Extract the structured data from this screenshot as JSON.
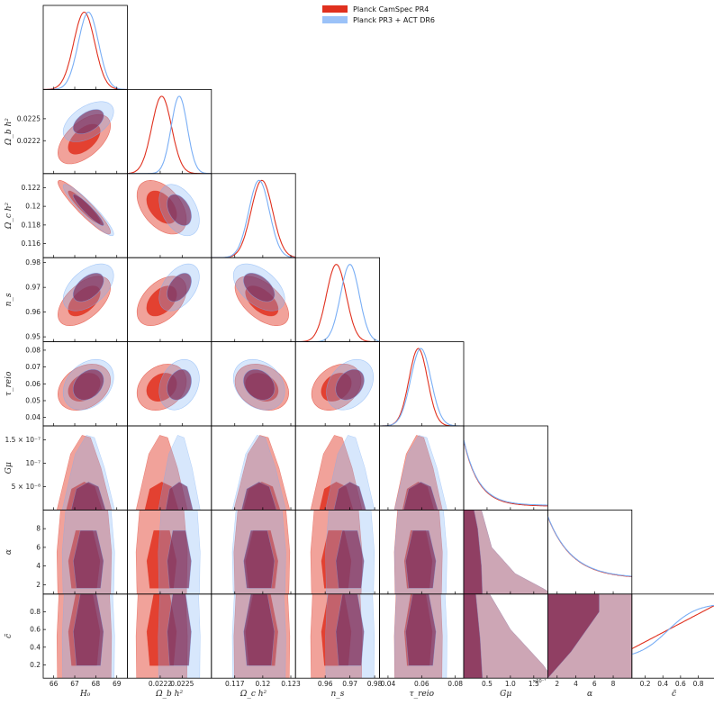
{
  "legend": {
    "items": [
      {
        "label": "Planck CamSpec PR4",
        "color": "#e0301e"
      },
      {
        "label": "Planck PR3 + ACT DR6",
        "color": "#79aef5"
      }
    ]
  },
  "chart_data": {
    "type": "corner",
    "parameters": [
      {
        "name": "H_0",
        "label": "H₀",
        "range": [
          65.5,
          69.5
        ],
        "ticks": [
          66,
          67,
          68,
          69
        ]
      },
      {
        "name": "omega_b",
        "label": "Ω_b h²",
        "range": [
          0.02175,
          0.0229
        ],
        "ticks": [
          0.0222,
          0.0225
        ]
      },
      {
        "name": "omega_c",
        "label": "Ω_c h²",
        "range": [
          0.1145,
          0.1235
        ],
        "ticks": [
          0.117,
          0.12,
          0.123
        ],
        "ylim": [
          0.1145,
          0.1235
        ],
        "yticks": [
          0.116,
          0.118,
          0.12,
          0.122
        ]
      },
      {
        "name": "n_s",
        "label": "n_s",
        "range": [
          0.948,
          0.982
        ],
        "ticks": [
          0.96,
          0.97,
          0.98
        ],
        "yticks": [
          0.95,
          0.96,
          0.97,
          0.98
        ]
      },
      {
        "name": "tau_reio",
        "label": "τ_reio",
        "range": [
          0.035,
          0.085
        ],
        "ticks": [
          0.04,
          0.06,
          0.08
        ],
        "yticks": [
          0.04,
          0.05,
          0.06,
          0.07,
          0.08
        ]
      },
      {
        "name": "G_mu",
        "label": "Gμ",
        "range": [
          0,
          1.8e-07
        ],
        "ticks": [
          5e-08,
          1e-07,
          1.5e-07
        ],
        "tick_labels": [
          "0.5",
          "1.0",
          "1.5"
        ],
        "scale_label": "×10⁻⁷",
        "yticks": [
          5e-08,
          1e-07,
          1.5e-07
        ],
        "ytick_labels": [
          "5 × 10⁻⁸",
          "10⁻⁷",
          "1.5 × 10⁻⁷"
        ]
      },
      {
        "name": "alpha",
        "label": "α",
        "range": [
          1,
          10
        ],
        "ticks": [
          2,
          4,
          6,
          8
        ],
        "yticks": [
          2,
          4,
          6,
          8
        ]
      },
      {
        "name": "c_tilde",
        "label": "c̃",
        "range": [
          0.05,
          1.0
        ],
        "ticks": [
          0.2,
          0.4,
          0.6,
          0.8
        ],
        "yticks": [
          0.2,
          0.4,
          0.6,
          0.8
        ]
      }
    ],
    "series": [
      {
        "name": "Planck CamSpec PR4",
        "color": "#e0301e",
        "mean": [
          67.45,
          0.02222,
          0.1199,
          0.9645,
          0.058
        ],
        "sigma": [
          0.5,
          0.000135,
          0.00115,
          0.004,
          0.0055
        ],
        "correlation": [
          [
            1,
            0.55,
            -0.93,
            0.55,
            0.3
          ],
          [
            0.55,
            1,
            -0.45,
            0.45,
            0.25
          ],
          [
            -0.93,
            -0.45,
            1,
            -0.55,
            -0.25
          ],
          [
            0.55,
            0.45,
            -0.55,
            1,
            0.3
          ],
          [
            0.3,
            0.25,
            -0.25,
            0.3,
            1
          ]
        ]
      },
      {
        "name": "Planck PR3 + ACT DR6",
        "color": "#79aef5",
        "mean": [
          67.65,
          0.02246,
          0.1196,
          0.97,
          0.0595
        ],
        "sigma": [
          0.48,
          0.00011,
          0.0011,
          0.0038,
          0.006
        ],
        "correlation": [
          [
            1,
            0.5,
            -0.93,
            0.5,
            0.3
          ],
          [
            0.5,
            1,
            -0.4,
            0.45,
            0.25
          ],
          [
            -0.93,
            -0.4,
            1,
            -0.5,
            -0.25
          ],
          [
            0.5,
            0.45,
            -0.5,
            1,
            0.3
          ],
          [
            0.3,
            0.25,
            -0.25,
            0.3,
            1
          ]
        ]
      }
    ]
  }
}
